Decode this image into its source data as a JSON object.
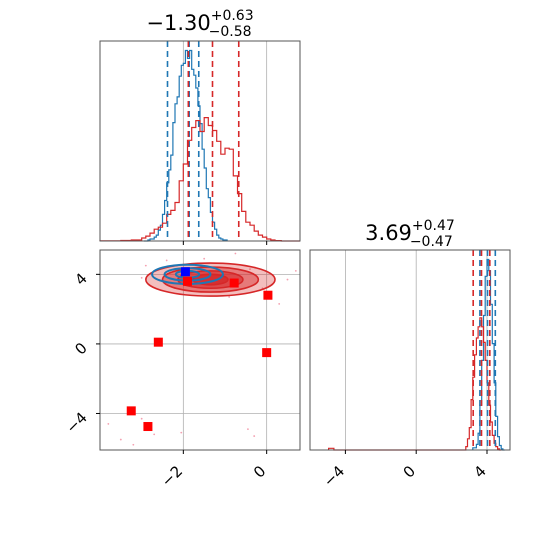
{
  "chart_data": [
    {
      "panel": "hist-param1",
      "type": "histogram",
      "title": {
        "main": "−1.30",
        "sup": "+0.63",
        "sub": "−0.58"
      },
      "xlim": [
        -4.0,
        0.8
      ],
      "grid": true,
      "series": [
        {
          "color": "#1f77b4",
          "bins": [
            -2.95,
            -2.85,
            -2.8,
            -2.75,
            -2.7,
            -2.65,
            -2.6,
            -2.55,
            -2.5,
            -2.45,
            -2.4,
            -2.35,
            -2.3,
            -2.25,
            -2.2,
            -2.15,
            -2.1,
            -2.05,
            -2.0,
            -1.95,
            -1.9,
            -1.85,
            -1.8,
            -1.75,
            -1.7,
            -1.65,
            -1.6,
            -1.55,
            -1.5,
            -1.45,
            -1.4,
            -1.35,
            -1.3,
            -1.25,
            -1.2,
            -1.15,
            -1.1,
            -1.05,
            -0.95
          ],
          "counts": [
            0,
            1,
            2,
            2,
            4,
            6,
            11,
            16,
            27,
            41,
            59,
            72,
            87,
            120,
            139,
            146,
            167,
            178,
            180,
            193,
            185,
            193,
            174,
            168,
            155,
            137,
            119,
            93,
            74,
            53,
            44,
            29,
            19,
            12,
            6,
            3,
            2,
            1
          ]
        },
        {
          "color": "#d62728",
          "bins": [
            -4.0,
            -3.5,
            -3.25,
            -3.0,
            -2.9,
            -2.8,
            -2.7,
            -2.6,
            -2.5,
            -2.4,
            -2.3,
            -2.2,
            -2.1,
            -2.0,
            -1.9,
            -1.8,
            -1.7,
            -1.6,
            -1.5,
            -1.4,
            -1.3,
            -1.2,
            -1.1,
            -1.0,
            -0.9,
            -0.8,
            -0.7,
            -0.6,
            -0.5,
            -0.4,
            -0.3,
            -0.2,
            -0.1,
            0.0,
            0.1,
            0.2,
            0.35,
            0.8
          ],
          "counts": [
            0.2,
            0.5,
            1,
            3,
            5,
            8,
            12,
            14,
            18,
            27,
            31,
            39,
            61,
            78,
            102,
            115,
            122,
            111,
            125,
            117,
            112,
            101,
            88,
            94,
            93,
            66,
            48,
            30,
            19,
            16,
            10,
            6,
            4,
            2,
            1,
            0.4,
            0
          ]
        }
      ],
      "quantile_lines": [
        {
          "color": "#1f77b4",
          "values": [
            -2.38,
            -1.86,
            -1.63
          ]
        },
        {
          "color": "#d62728",
          "values": [
            -1.88,
            -1.3,
            -0.67
          ]
        }
      ],
      "xticks": [
        -2,
        0
      ]
    },
    {
      "panel": "hist-param2",
      "type": "histogram",
      "title": {
        "main": "3.69",
        "sup": "+0.47",
        "sub": "−0.47"
      },
      "xlim": [
        -6.0,
        5.3
      ],
      "grid": true,
      "series": [
        {
          "color": "#1f77b4",
          "bins": [
            3.2,
            3.4,
            3.5,
            3.6,
            3.7,
            3.8,
            3.9,
            4.0,
            4.1,
            4.2,
            4.3,
            4.4,
            4.5,
            4.6,
            4.7,
            4.8,
            4.9,
            5.0
          ],
          "counts": [
            2,
            5,
            15,
            40,
            80,
            120,
            155,
            170,
            160,
            130,
            95,
            60,
            30,
            12,
            4,
            1,
            0
          ]
        },
        {
          "color": "#d62728",
          "bins": [
            -4.95,
            -4.65,
            2.8,
            2.9,
            3.0,
            3.1,
            3.2,
            3.3,
            3.4,
            3.5,
            3.6,
            3.7,
            3.8,
            3.9,
            4.0,
            4.1,
            4.2,
            4.3,
            4.4,
            4.5,
            4.6,
            4.7,
            4.8
          ],
          "counts": [
            1.5,
            0,
            3,
            10,
            20,
            45,
            65,
            85,
            100,
            110,
            118,
            110,
            96,
            80,
            60,
            40,
            25,
            13,
            6,
            3,
            1,
            0
          ]
        }
      ],
      "quantile_lines": [
        {
          "color": "#1f77b4",
          "values": [
            3.6,
            4.03,
            4.47
          ]
        },
        {
          "color": "#d62728",
          "values": [
            3.22,
            3.69,
            4.16
          ]
        }
      ],
      "xticks": [
        -4,
        0,
        4
      ]
    },
    {
      "panel": "scatter-2d",
      "type": "scatter",
      "xlim": [
        -4.0,
        0.8
      ],
      "ylim": [
        -6.1,
        5.4
      ],
      "grid": true,
      "xticks": [
        -2,
        0
      ],
      "yticks": [
        -4,
        0,
        4
      ],
      "contours": [
        {
          "color": "#d62728",
          "fill": true,
          "center": [
            -1.35,
            3.7
          ],
          "levels": [
            {
              "rx": 1.55,
              "ry": 0.95,
              "opacity": 0.3
            },
            {
              "rx": 1.15,
              "ry": 0.72,
              "opacity": 0.45
            },
            {
              "rx": 0.78,
              "ry": 0.5,
              "opacity": 0.6
            },
            {
              "rx": 0.42,
              "ry": 0.3,
              "opacity": 0.75
            }
          ]
        },
        {
          "color": "#1f77b4",
          "fill": false,
          "center": [
            -1.9,
            4.0
          ],
          "levels": [
            {
              "rx": 0.85,
              "ry": 0.55
            },
            {
              "rx": 0.55,
              "ry": 0.36
            },
            {
              "rx": 0.28,
              "ry": 0.2
            }
          ]
        }
      ],
      "markers": [
        {
          "x": -1.95,
          "y": 4.15,
          "color": "#0000ff"
        },
        {
          "x": -1.9,
          "y": 3.6,
          "color": "#ff0000"
        },
        {
          "x": -0.78,
          "y": 3.5,
          "color": "#ff0000"
        },
        {
          "x": 0.03,
          "y": 2.8,
          "color": "#ff0000"
        },
        {
          "x": -2.6,
          "y": 0.1,
          "color": "#ff0000"
        },
        {
          "x": 0.0,
          "y": -0.5,
          "color": "#ff0000"
        },
        {
          "x": -3.25,
          "y": -3.85,
          "color": "#ff0000"
        },
        {
          "x": -2.85,
          "y": -4.75,
          "color": "#ff0000"
        }
      ],
      "scatter_points": [
        [
          -3.5,
          -5.5
        ],
        [
          -3.8,
          -4.6
        ],
        [
          -3.2,
          -5.8
        ],
        [
          -2.7,
          -5.2
        ],
        [
          -3.0,
          -4.3
        ],
        [
          -2.4,
          4.8
        ],
        [
          -2.2,
          3.2
        ],
        [
          -1.5,
          4.9
        ],
        [
          -0.4,
          4.3
        ],
        [
          -0.1,
          3.2
        ],
        [
          0.5,
          3.7
        ],
        [
          0.7,
          4.2
        ],
        [
          -3.0,
          3.8
        ],
        [
          -2.9,
          4.5
        ],
        [
          -0.9,
          2.7
        ],
        [
          0.3,
          2.3
        ],
        [
          -2.05,
          -5.1
        ],
        [
          -0.45,
          -4.9
        ],
        [
          -0.3,
          -5.3
        ],
        [
          -0.75,
          5.2
        ]
      ]
    }
  ]
}
